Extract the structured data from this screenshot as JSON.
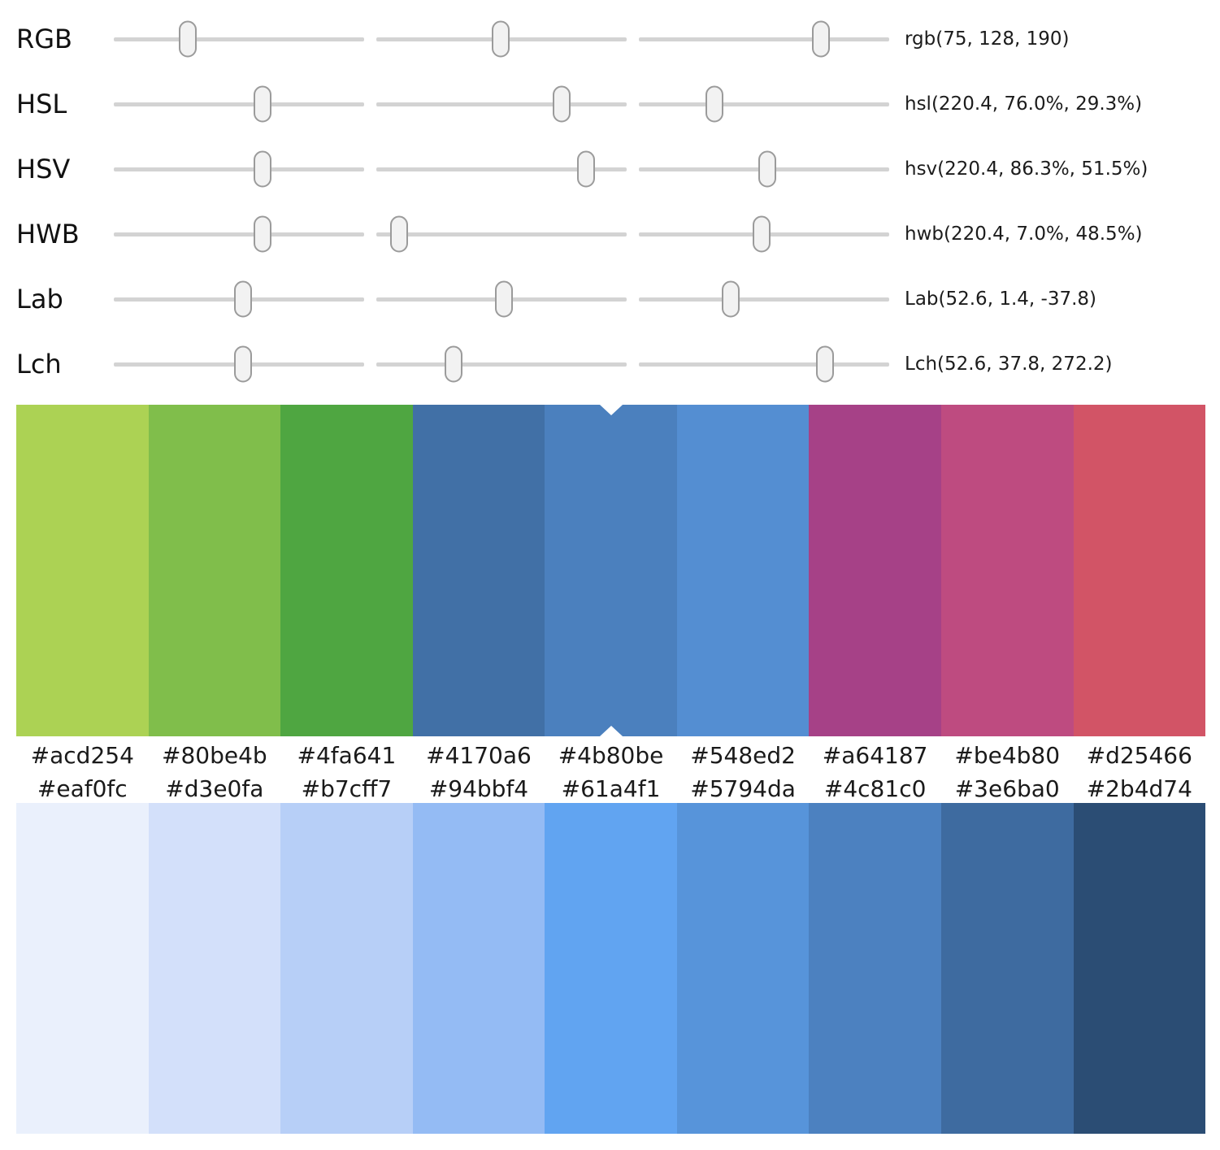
{
  "sliders": {
    "rows": [
      {
        "id": "rgb",
        "label": "RGB",
        "value": "rgb(75, 128, 190)",
        "fracs": [
          0.295,
          0.497,
          0.727
        ]
      },
      {
        "id": "hsl",
        "label": "HSL",
        "value": "hsl(220.4, 76.0%, 29.3%)",
        "fracs": [
          0.594,
          0.74,
          0.302
        ]
      },
      {
        "id": "hsv",
        "label": "HSV",
        "value": "hsv(220.4, 86.3%, 51.5%)",
        "fracs": [
          0.594,
          0.838,
          0.513
        ]
      },
      {
        "id": "hwb",
        "label": "HWB",
        "value": "hwb(220.4, 7.0%, 48.5%)",
        "fracs": [
          0.594,
          0.091,
          0.49
        ]
      },
      {
        "id": "lab",
        "label": "Lab",
        "value": "Lab(52.6, 1.4, -37.8)",
        "fracs": [
          0.516,
          0.51,
          0.368
        ]
      },
      {
        "id": "lch",
        "label": "Lch",
        "value": "Lch(52.6, 37.8, 272.2)",
        "fracs": [
          0.516,
          0.308,
          0.742
        ]
      }
    ]
  },
  "palette_top": {
    "swatches": [
      "#acd254",
      "#80be4b",
      "#4fa641",
      "#4170a6",
      "#4b80be",
      "#548ed2",
      "#a64187",
      "#be4b80",
      "#d25466"
    ],
    "selected_index": 4,
    "selected_hex": "#4b80be"
  },
  "palette_bottom": {
    "swatches": [
      "#eaf0fc",
      "#d3e0fa",
      "#b7cff7",
      "#94bbf4",
      "#61a4f1",
      "#5794da",
      "#4c81c0",
      "#3e6ba0",
      "#2b4d74"
    ]
  },
  "ui_colors": {
    "track": "#d3d3d3",
    "thumb_fill": "#f2f2f2",
    "thumb_border": "#9b9b9b",
    "marker": "#ffffff",
    "text": "#1a1a1a"
  }
}
